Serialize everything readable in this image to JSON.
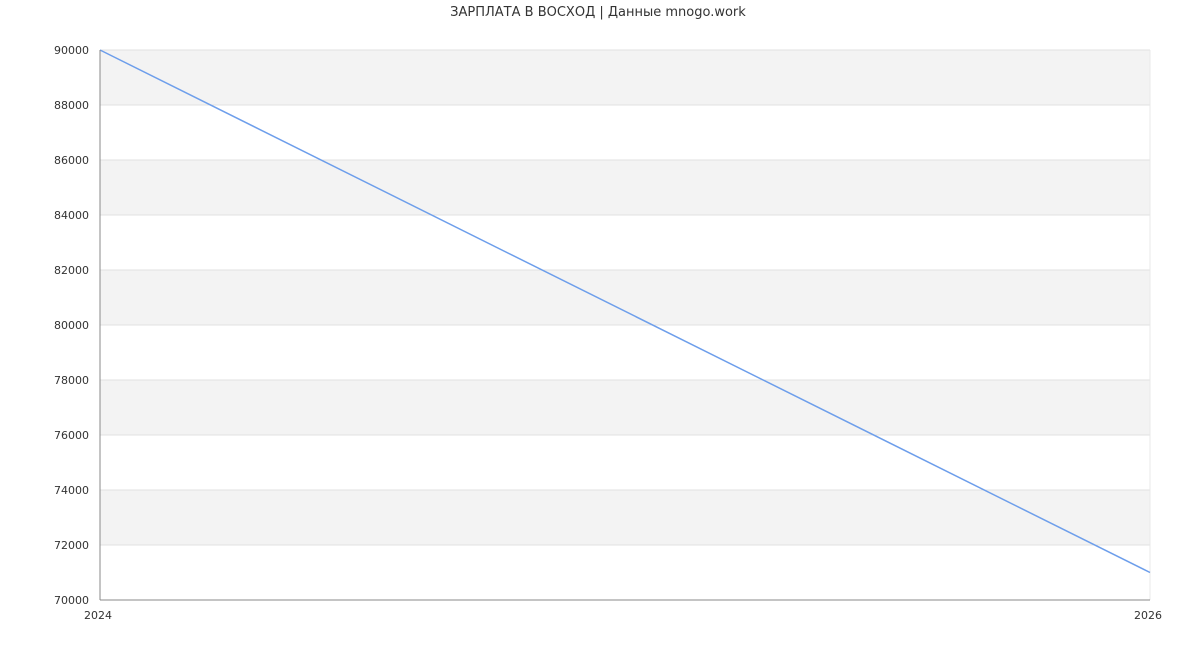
{
  "chart_data": {
    "type": "line",
    "title": "ЗАРПЛАТА В ВОСХОД | Данные mnogo.work",
    "xlabel": "",
    "ylabel": "",
    "x_ticks": [
      "2024",
      "2026"
    ],
    "y_ticks": [
      70000,
      72000,
      74000,
      76000,
      78000,
      80000,
      82000,
      84000,
      86000,
      88000,
      90000
    ],
    "xlim": [
      2024,
      2026
    ],
    "ylim": [
      70000,
      90000
    ],
    "grid": true,
    "band_color": "#f3f3f3",
    "series": [
      {
        "color": "#6d9eeb",
        "x": [
          2024,
          2026
        ],
        "y": [
          90000,
          71000
        ]
      }
    ]
  }
}
